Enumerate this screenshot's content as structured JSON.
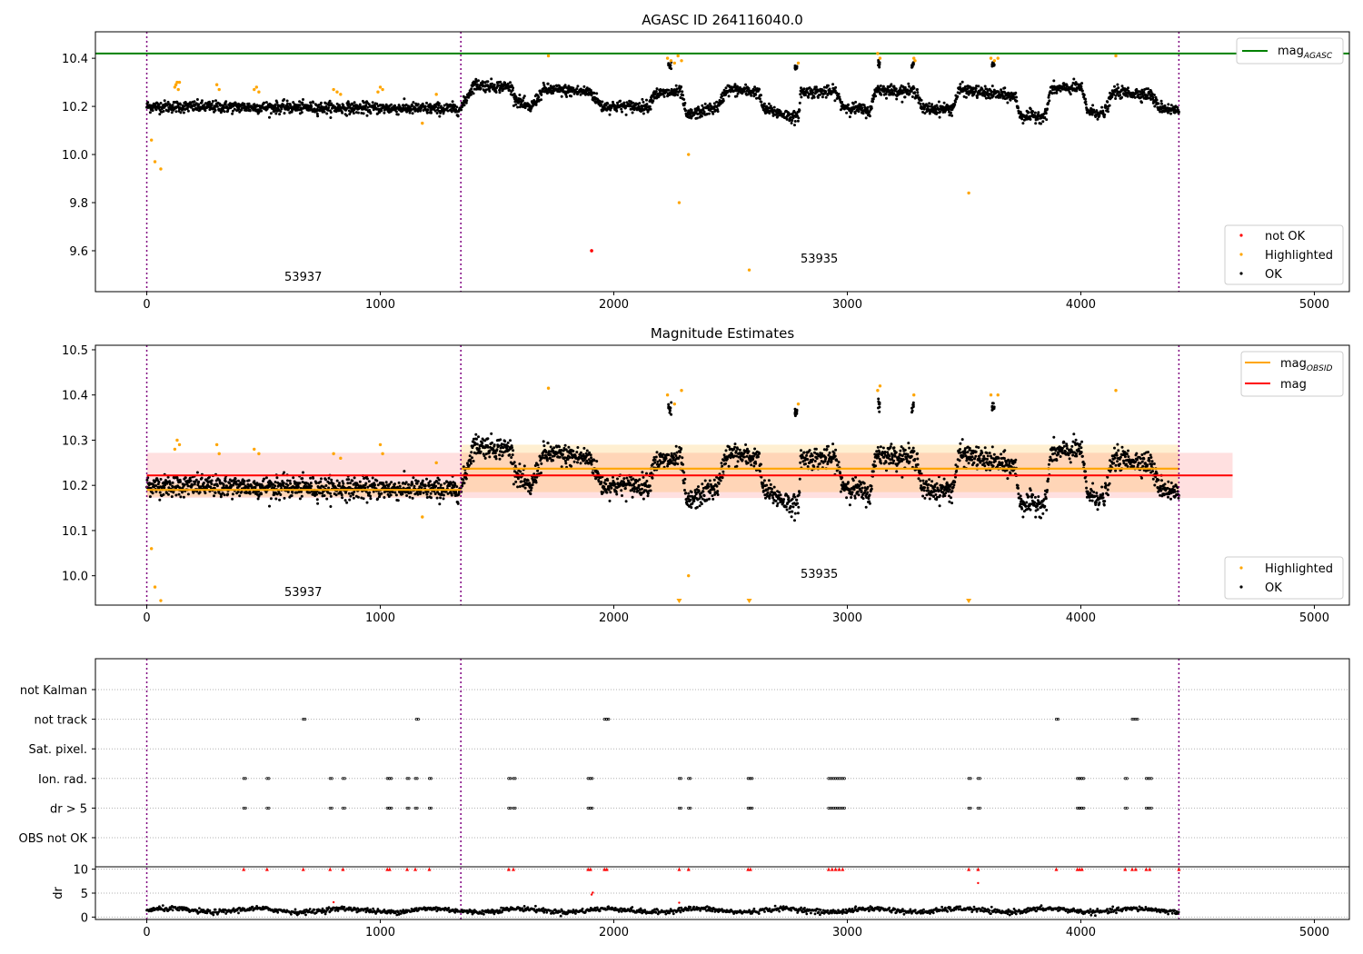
{
  "figure": {
    "panel1_title": "AGASC ID 264116040.0",
    "panel2_title": "Magnitude Estimates"
  },
  "colors": {
    "not_ok": "#ff0000",
    "highlighted": "#ffa500",
    "ok": "#000000",
    "mag_agasc": "#008000",
    "mag_obsid": "#ffa500",
    "mag": "#ff0000",
    "obsid_boundary": "#800080"
  },
  "chart_data": [
    {
      "type": "scatter",
      "title": "AGASC ID 264116040.0",
      "xlabel": "",
      "ylabel": "",
      "xlim": [
        -220,
        5150
      ],
      "ylim": [
        9.43,
        10.51
      ],
      "xticks": [
        0,
        1000,
        2000,
        3000,
        4000,
        5000
      ],
      "yticks": [
        9.6,
        9.8,
        10.0,
        10.2,
        10.4
      ],
      "grid": false,
      "legend": [
        {
          "position": "top-right",
          "entries": [
            "mag$_{AGASC}$"
          ]
        },
        {
          "position": "bottom-right",
          "entries": [
            "not OK",
            "Highlighted",
            "OK"
          ]
        }
      ],
      "hlines": [
        {
          "name": "mag$_{AGASC}$",
          "y": 10.42,
          "color": "#008000"
        }
      ],
      "vlines": [
        0,
        1345,
        4420
      ],
      "annotations": [
        {
          "text": "53937",
          "x": 670,
          "y": 9.475
        },
        {
          "text": "53935",
          "x": 2880,
          "y": 9.55
        }
      ],
      "segments": [
        {
          "x_start": 0,
          "x_end": 1340,
          "levels": [
            [
              0,
              10.2
            ],
            [
              1340,
              10.19
            ]
          ],
          "scatter": 0.022,
          "density": 1.5
        },
        {
          "x_start": 1345,
          "x_end": 4420,
          "levels": [
            [
              1345,
              10.19
            ],
            [
              1400,
              10.29
            ],
            [
              1560,
              10.28
            ],
            [
              1580,
              10.23
            ],
            [
              1640,
              10.19
            ],
            [
              1700,
              10.27
            ],
            [
              1900,
              10.26
            ],
            [
              1950,
              10.2
            ],
            [
              2150,
              10.2
            ],
            [
              2170,
              10.25
            ],
            [
              2290,
              10.26
            ],
            [
              2310,
              10.16
            ],
            [
              2450,
              10.2
            ],
            [
              2480,
              10.27
            ],
            [
              2620,
              10.26
            ],
            [
              2640,
              10.19
            ],
            [
              2790,
              10.15
            ],
            [
              2800,
              10.26
            ],
            [
              2950,
              10.26
            ],
            [
              2980,
              10.2
            ],
            [
              3100,
              10.18
            ],
            [
              3120,
              10.27
            ],
            [
              3300,
              10.26
            ],
            [
              3320,
              10.19
            ],
            [
              3450,
              10.19
            ],
            [
              3480,
              10.27
            ],
            [
              3720,
              10.24
            ],
            [
              3740,
              10.16
            ],
            [
              3850,
              10.16
            ],
            [
              3870,
              10.27
            ],
            [
              4000,
              10.28
            ],
            [
              4030,
              10.18
            ],
            [
              4100,
              10.17
            ],
            [
              4140,
              10.26
            ],
            [
              4300,
              10.25
            ],
            [
              4330,
              10.2
            ],
            [
              4420,
              10.18
            ]
          ],
          "scatter": 0.022,
          "density": 1.5
        }
      ],
      "clusters": [
        {
          "x": 2240,
          "y": 10.37,
          "n": 10,
          "spread": 12
        },
        {
          "x": 3135,
          "y": 10.375,
          "n": 8,
          "spread": 8
        },
        {
          "x": 3280,
          "y": 10.37,
          "n": 8,
          "spread": 8
        },
        {
          "x": 3625,
          "y": 10.37,
          "n": 12,
          "spread": 10
        },
        {
          "x": 2780,
          "y": 10.36,
          "n": 10,
          "spread": 8
        }
      ],
      "highlighted_points": [
        [
          20,
          10.06
        ],
        [
          35,
          9.97
        ],
        [
          60,
          9.94
        ],
        [
          120,
          10.28
        ],
        [
          125,
          10.29
        ],
        [
          130,
          10.3
        ],
        [
          135,
          10.27
        ],
        [
          140,
          10.3
        ],
        [
          300,
          10.29
        ],
        [
          310,
          10.27
        ],
        [
          460,
          10.27
        ],
        [
          470,
          10.28
        ],
        [
          480,
          10.26
        ],
        [
          800,
          10.27
        ],
        [
          815,
          10.26
        ],
        [
          830,
          10.25
        ],
        [
          990,
          10.26
        ],
        [
          1000,
          10.28
        ],
        [
          1010,
          10.27
        ],
        [
          1240,
          10.25
        ],
        [
          1180,
          10.13
        ],
        [
          1720,
          10.41
        ],
        [
          2230,
          10.4
        ],
        [
          2245,
          10.39
        ],
        [
          2260,
          10.38
        ],
        [
          2275,
          10.41
        ],
        [
          2290,
          10.39
        ],
        [
          2280,
          9.8
        ],
        [
          2320,
          10.0
        ],
        [
          2580,
          9.52
        ],
        [
          2790,
          10.38
        ],
        [
          3130,
          10.42
        ],
        [
          3140,
          10.4
        ],
        [
          3285,
          10.4
        ],
        [
          3290,
          10.39
        ],
        [
          3520,
          9.84
        ],
        [
          3615,
          10.4
        ],
        [
          3630,
          10.39
        ],
        [
          3645,
          10.4
        ],
        [
          4150,
          10.41
        ]
      ],
      "not_ok_points": [
        [
          1905,
          9.6
        ]
      ]
    },
    {
      "type": "scatter",
      "title": "Magnitude Estimates",
      "xlabel": "",
      "ylabel": "",
      "xlim": [
        -220,
        5150
      ],
      "ylim": [
        9.935,
        10.51
      ],
      "xticks": [
        0,
        1000,
        2000,
        3000,
        4000,
        5000
      ],
      "yticks": [
        10.0,
        10.1,
        10.2,
        10.3,
        10.4,
        10.5
      ],
      "grid": false,
      "legend": [
        {
          "position": "top-right",
          "entries": [
            "mag$_{OBSID}$",
            "mag"
          ]
        },
        {
          "position": "bottom-right",
          "entries": [
            "Highlighted",
            "OK"
          ]
        }
      ],
      "mag": {
        "name": "mag",
        "value": 10.222,
        "band": [
          10.172,
          10.272
        ],
        "x_range": [
          0,
          4650
        ],
        "color": "#ff0000"
      },
      "mag_obsid": [
        {
          "x_range": [
            0,
            1345
          ],
          "value": 10.19,
          "band": [
            10.175,
            10.205
          ]
        },
        {
          "x_range": [
            1345,
            4420
          ],
          "value": 10.237,
          "band": [
            10.185,
            10.29
          ]
        }
      ],
      "vlines": [
        0,
        1345,
        4420
      ],
      "annotations": [
        {
          "text": "53937",
          "x": 670,
          "y": 9.955
        },
        {
          "text": "53935",
          "x": 2880,
          "y": 9.995
        }
      ],
      "highlighted_points": [
        [
          20,
          10.06
        ],
        [
          35,
          9.975
        ],
        [
          60,
          9.945
        ],
        [
          120,
          10.28
        ],
        [
          130,
          10.3
        ],
        [
          140,
          10.29
        ],
        [
          300,
          10.29
        ],
        [
          310,
          10.27
        ],
        [
          460,
          10.28
        ],
        [
          480,
          10.27
        ],
        [
          800,
          10.27
        ],
        [
          830,
          10.26
        ],
        [
          1000,
          10.29
        ],
        [
          1010,
          10.27
        ],
        [
          1240,
          10.25
        ],
        [
          1180,
          10.13
        ],
        [
          1720,
          10.415
        ],
        [
          2230,
          10.4
        ],
        [
          2260,
          10.38
        ],
        [
          2290,
          10.41
        ],
        [
          2320,
          10.0
        ],
        [
          2790,
          10.38
        ],
        [
          3130,
          10.41
        ],
        [
          3140,
          10.42
        ],
        [
          3285,
          10.4
        ],
        [
          3615,
          10.4
        ],
        [
          3645,
          10.4
        ],
        [
          4150,
          10.41
        ]
      ],
      "offscale_markers": [
        2280,
        2580,
        3520
      ]
    },
    {
      "type": "scatter",
      "title": "",
      "xlabel": "",
      "ylabel": "",
      "xlim": [
        -220,
        5150
      ],
      "categories": [
        "not Kalman",
        "not track",
        "Sat. pixel.",
        "Ion. rad.",
        "dr > 5",
        "OBS not OK"
      ],
      "grid": true,
      "vlines": [
        0,
        1345,
        4420
      ],
      "flag_points": {
        "not Kalman": [],
        "not track": [
          670,
          1155,
          1960,
          1970,
          3895,
          4220,
          4235
        ],
        "Sat. pixel.": [],
        "Ion. rad.": [
          415,
          515,
          785,
          840,
          1030,
          1040,
          1115,
          1150,
          1210,
          1550,
          1570,
          1890,
          1900,
          2280,
          2320,
          2575,
          2585,
          2920,
          2935,
          2950,
          2965,
          2980,
          3520,
          3560,
          3985,
          3995,
          4005,
          4190,
          4280,
          4295
        ],
        "dr > 5": [
          415,
          515,
          785,
          840,
          1030,
          1040,
          1115,
          1150,
          1210,
          1550,
          1570,
          1890,
          1900,
          2280,
          2320,
          2575,
          2585,
          2920,
          2935,
          2950,
          2965,
          2980,
          3520,
          3560,
          3985,
          3995,
          4005,
          4190,
          4280,
          4295
        ],
        "OBS not OK": []
      }
    },
    {
      "type": "scatter",
      "title": "",
      "xlabel": "",
      "ylabel": "dr",
      "xlim": [
        -220,
        5150
      ],
      "ylim": [
        -0.5,
        10.5
      ],
      "yticks": [
        0,
        5,
        10
      ],
      "grid": true,
      "baseline": {
        "level": 1.4,
        "variation": 0.5
      },
      "clipped_points": [
        415,
        515,
        670,
        785,
        840,
        1030,
        1040,
        1115,
        1150,
        1210,
        1550,
        1570,
        1890,
        1900,
        1960,
        1970,
        2280,
        2320,
        2575,
        2585,
        2920,
        2935,
        2950,
        2965,
        2980,
        3520,
        3560,
        3895,
        3985,
        3995,
        4005,
        4190,
        4220,
        4235,
        4280,
        4295,
        4420
      ],
      "outliers": [
        [
          1905,
          4.7
        ],
        [
          1910,
          5.1
        ],
        [
          3560,
          7.1
        ],
        [
          800,
          3.1
        ],
        [
          2280,
          3.0
        ]
      ]
    }
  ]
}
